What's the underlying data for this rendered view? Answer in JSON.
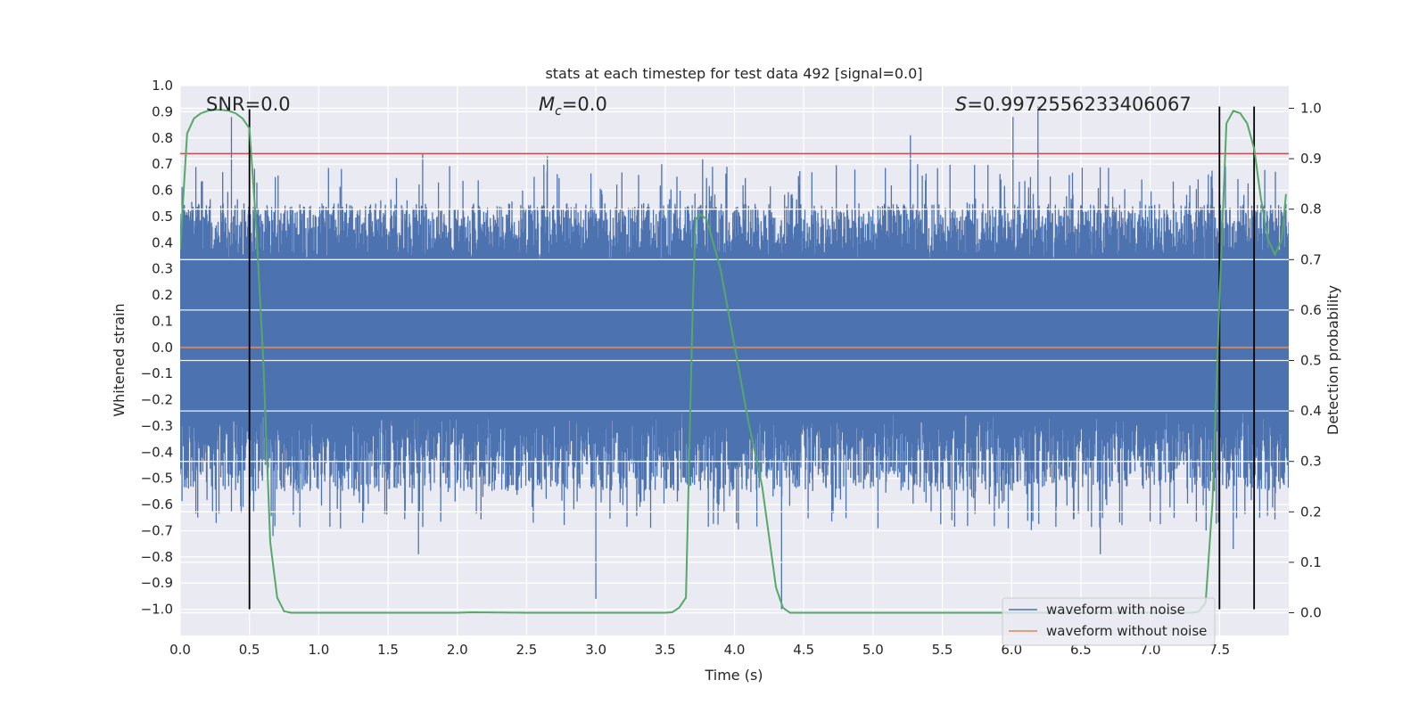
{
  "chart_data": {
    "type": "line",
    "title": "stats at each timestep for test data 492 [signal=0.0]",
    "xlabel": "Time (s)",
    "ylabel": "Whitened strain",
    "y2label": "Detection probability",
    "xlim": [
      0.0,
      8.0
    ],
    "ylim": [
      -1.1,
      1.0
    ],
    "y2lim": [
      -0.045,
      1.045
    ],
    "x_ticks": [
      "0.0",
      "0.5",
      "1.0",
      "1.5",
      "2.0",
      "2.5",
      "3.0",
      "3.5",
      "4.0",
      "4.5",
      "5.0",
      "5.5",
      "6.0",
      "6.5",
      "7.0",
      "7.5"
    ],
    "y_ticks": [
      "1.0",
      "0.9",
      "0.8",
      "0.7",
      "0.6",
      "0.5",
      "0.4",
      "0.3",
      "0.2",
      "0.1",
      "0.0",
      "−0.1",
      "−0.2",
      "−0.3",
      "−0.4",
      "−0.5",
      "−0.6",
      "−0.7",
      "−0.8",
      "−0.9",
      "−1.0"
    ],
    "y2_ticks": [
      "1.0",
      "0.9",
      "0.8",
      "0.7",
      "0.6",
      "0.5",
      "0.4",
      "0.3",
      "0.2",
      "0.1",
      "0.0"
    ],
    "grid": true,
    "annotations": {
      "snr": "SNR=0.0",
      "mc_symbol": "M",
      "mc_sub": "c",
      "mc_value": "=0.0",
      "s_symbol": "S",
      "s_value": "=0.9972556233406067"
    },
    "legend": {
      "placement": "lower-right",
      "entries": [
        {
          "label": "waveform with noise",
          "color": "#4c72b0"
        },
        {
          "label": "waveform without noise",
          "color": "#dd8452"
        }
      ]
    },
    "noise_series": {
      "name": "waveform with noise",
      "color": "#4c72b0",
      "x_range": [
        0.0,
        8.0
      ],
      "dense_band": [
        -0.25,
        0.33
      ],
      "typical_peak": 0.55,
      "max": 0.92,
      "min": -1.0,
      "notable_peaks": [
        [
          0.37,
          0.88
        ],
        [
          6.01,
          0.88
        ],
        [
          6.19,
          0.92
        ],
        [
          5.27,
          0.81
        ],
        [
          3.77,
          0.72
        ],
        [
          1.75,
          0.74
        ],
        [
          2.65,
          0.73
        ],
        [
          0.67,
          -0.72
        ],
        [
          1.72,
          -0.79
        ],
        [
          3.0,
          -0.96
        ],
        [
          4.34,
          -1.0
        ],
        [
          6.64,
          -0.79
        ],
        [
          7.6,
          -0.77
        ]
      ]
    },
    "clean_series": {
      "name": "waveform without noise",
      "color": "#dd8452",
      "x": [
        0.0,
        8.0
      ],
      "y": [
        0.0,
        0.0
      ]
    },
    "probability_series": {
      "name": "Detection probability",
      "color": "#55a868",
      "x": [
        0.0,
        0.05,
        0.1,
        0.15,
        0.2,
        0.25,
        0.3,
        0.35,
        0.4,
        0.45,
        0.5,
        0.55,
        0.6,
        0.65,
        0.7,
        0.75,
        0.8,
        1.0,
        1.5,
        2.0,
        2.1,
        2.5,
        3.0,
        3.5,
        3.55,
        3.6,
        3.65,
        3.7,
        3.72,
        3.75,
        3.8,
        3.85,
        3.9,
        4.0,
        4.1,
        4.2,
        4.3,
        4.35,
        4.4,
        4.5,
        5.0,
        5.5,
        6.0,
        6.5,
        7.0,
        7.3,
        7.35,
        7.4,
        7.45,
        7.5,
        7.55,
        7.6,
        7.65,
        7.7,
        7.75,
        7.8,
        7.85,
        7.9,
        7.95,
        7.98
      ],
      "y": [
        0.72,
        0.95,
        0.98,
        0.99,
        0.995,
        0.997,
        0.997,
        0.995,
        0.99,
        0.98,
        0.96,
        0.76,
        0.5,
        0.14,
        0.03,
        0.003,
        0.0,
        0.0,
        0.0,
        0.0,
        0.001,
        0.0,
        0.0,
        0.0,
        0.001,
        0.01,
        0.03,
        0.62,
        0.78,
        0.79,
        0.78,
        0.73,
        0.68,
        0.53,
        0.38,
        0.25,
        0.05,
        0.01,
        0.0,
        0.0,
        0.0,
        0.0,
        0.0,
        0.0,
        0.0,
        0.0,
        0.002,
        0.02,
        0.22,
        0.62,
        0.97,
        0.995,
        0.99,
        0.97,
        0.92,
        0.82,
        0.74,
        0.71,
        0.74,
        0.83
      ]
    },
    "vertical_lines": [
      {
        "x": 0.5,
        "y_from": -1.0,
        "y_to": 0.91
      },
      {
        "x": 7.5,
        "y_from": -1.0,
        "y_to": 0.92
      },
      {
        "x": 7.75,
        "y_from": -1.0,
        "y_to": 0.92
      }
    ],
    "horizontal_lines": [
      {
        "y2": 0.91,
        "color": "#c44e52"
      }
    ]
  }
}
